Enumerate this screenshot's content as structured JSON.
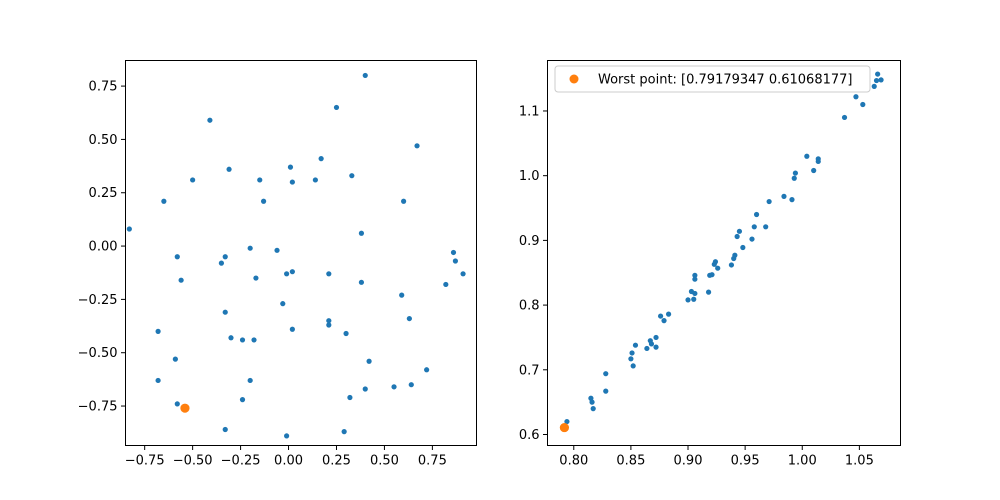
{
  "colors": {
    "series_main": "#1f77b4",
    "worst_point": "#ff7f0e",
    "axes": "#000000"
  },
  "chart_data": [
    {
      "type": "scatter",
      "title": "",
      "xlabel": "",
      "ylabel": "",
      "xlim": [
        -0.85,
        0.98
      ],
      "ylim": [
        -0.935,
        0.87
      ],
      "xticks": [
        -0.75,
        -0.5,
        -0.25,
        0.0,
        0.25,
        0.5,
        0.75
      ],
      "xtick_labels": [
        "−0.75",
        "−0.50",
        "−0.25",
        "0.00",
        "0.25",
        "0.50",
        "0.75"
      ],
      "yticks": [
        -0.75,
        -0.5,
        -0.25,
        0.0,
        0.25,
        0.5,
        0.75
      ],
      "ytick_labels": [
        "−0.75",
        "−0.50",
        "−0.25",
        "0.00",
        "0.25",
        "0.50",
        "0.75"
      ],
      "grid": false,
      "series": [
        {
          "points": [
            [
              -0.83,
              0.08
            ],
            [
              -0.65,
              0.21
            ],
            [
              -0.5,
              0.31
            ],
            [
              -0.41,
              0.59
            ],
            [
              -0.31,
              0.36
            ],
            [
              -0.15,
              0.31
            ],
            [
              -0.13,
              0.21
            ],
            [
              0.01,
              0.37
            ],
            [
              0.02,
              0.3
            ],
            [
              0.14,
              0.31
            ],
            [
              0.17,
              0.41
            ],
            [
              0.25,
              0.65
            ],
            [
              0.33,
              0.33
            ],
            [
              0.4,
              0.8
            ],
            [
              0.6,
              0.21
            ],
            [
              0.67,
              0.47
            ],
            [
              0.38,
              0.06
            ],
            [
              0.38,
              -0.17
            ],
            [
              0.21,
              -0.13
            ],
            [
              0.02,
              -0.12
            ],
            [
              -0.01,
              -0.13
            ],
            [
              -0.06,
              -0.02
            ],
            [
              -0.2,
              -0.01
            ],
            [
              -0.17,
              -0.15
            ],
            [
              -0.33,
              -0.05
            ],
            [
              -0.35,
              -0.08
            ],
            [
              -0.58,
              -0.05
            ],
            [
              -0.56,
              -0.16
            ],
            [
              -0.33,
              -0.31
            ],
            [
              -0.03,
              -0.27
            ],
            [
              0.02,
              -0.39
            ],
            [
              0.21,
              -0.35
            ],
            [
              0.21,
              -0.37
            ],
            [
              0.3,
              -0.41
            ],
            [
              0.42,
              -0.54
            ],
            [
              0.59,
              -0.23
            ],
            [
              0.63,
              -0.34
            ],
            [
              0.82,
              -0.18
            ],
            [
              0.86,
              -0.03
            ],
            [
              0.87,
              -0.07
            ],
            [
              0.91,
              -0.13
            ],
            [
              -0.68,
              -0.4
            ],
            [
              -0.59,
              -0.53
            ],
            [
              -0.68,
              -0.63
            ],
            [
              -0.58,
              -0.74
            ],
            [
              -0.3,
              -0.43
            ],
            [
              -0.24,
              -0.44
            ],
            [
              -0.18,
              -0.44
            ],
            [
              -0.2,
              -0.63
            ],
            [
              -0.24,
              -0.72
            ],
            [
              -0.33,
              -0.86
            ],
            [
              -0.01,
              -0.89
            ],
            [
              0.29,
              -0.87
            ],
            [
              0.32,
              -0.71
            ],
            [
              0.4,
              -0.67
            ],
            [
              0.55,
              -0.66
            ],
            [
              0.64,
              -0.65
            ],
            [
              0.72,
              -0.58
            ]
          ]
        },
        {
          "points": [
            [
              -0.54,
              -0.76
            ]
          ]
        }
      ]
    },
    {
      "type": "scatter",
      "title": "",
      "xlabel": "",
      "ylabel": "",
      "xlim": [
        0.777,
        1.086
      ],
      "ylim": [
        0.583,
        1.178
      ],
      "xticks": [
        0.8,
        0.85,
        0.9,
        0.95,
        1.0,
        1.05
      ],
      "xtick_labels": [
        "0.80",
        "0.85",
        "0.90",
        "0.95",
        "1.00",
        "1.05"
      ],
      "yticks": [
        0.6,
        0.7,
        0.8,
        0.9,
        1.0,
        1.1
      ],
      "ytick_labels": [
        "0.6",
        "0.7",
        "0.8",
        "0.9",
        "1.0",
        "1.1"
      ],
      "grid": false,
      "legend_position": "top-right",
      "series": [
        {
          "points": [
            [
              0.794,
              0.62
            ],
            [
              0.815,
              0.656
            ],
            [
              0.816,
              0.65
            ],
            [
              0.817,
              0.64
            ],
            [
              0.828,
              0.694
            ],
            [
              0.828,
              0.667
            ],
            [
              0.85,
              0.717
            ],
            [
              0.851,
              0.726
            ],
            [
              0.852,
              0.706
            ],
            [
              0.854,
              0.738
            ],
            [
              0.864,
              0.733
            ],
            [
              0.867,
              0.745
            ],
            [
              0.868,
              0.74
            ],
            [
              0.872,
              0.735
            ],
            [
              0.872,
              0.75
            ],
            [
              0.876,
              0.783
            ],
            [
              0.879,
              0.776
            ],
            [
              0.883,
              0.786
            ],
            [
              0.9,
              0.808
            ],
            [
              0.903,
              0.821
            ],
            [
              0.905,
              0.809
            ],
            [
              0.906,
              0.818
            ],
            [
              0.906,
              0.84
            ],
            [
              0.906,
              0.846
            ],
            [
              0.918,
              0.82
            ],
            [
              0.919,
              0.846
            ],
            [
              0.921,
              0.847
            ],
            [
              0.923,
              0.863
            ],
            [
              0.924,
              0.867
            ],
            [
              0.926,
              0.857
            ],
            [
              0.938,
              0.862
            ],
            [
              0.94,
              0.872
            ],
            [
              0.941,
              0.877
            ],
            [
              0.943,
              0.906
            ],
            [
              0.945,
              0.914
            ],
            [
              0.948,
              0.889
            ],
            [
              0.956,
              0.902
            ],
            [
              0.958,
              0.921
            ],
            [
              0.96,
              0.94
            ],
            [
              0.968,
              0.921
            ],
            [
              0.971,
              0.96
            ],
            [
              0.984,
              0.968
            ],
            [
              0.991,
              0.963
            ],
            [
              0.993,
              0.996
            ],
            [
              0.994,
              1.004
            ],
            [
              1.004,
              1.03
            ],
            [
              1.01,
              1.008
            ],
            [
              1.014,
              1.022
            ],
            [
              1.014,
              1.026
            ],
            [
              1.037,
              1.09
            ],
            [
              1.047,
              1.122
            ],
            [
              1.053,
              1.11
            ],
            [
              1.063,
              1.138
            ],
            [
              1.065,
              1.147
            ],
            [
              1.066,
              1.157
            ],
            [
              1.069,
              1.148
            ]
          ]
        },
        {
          "name": "Worst point: [0.79179347 0.61068177]",
          "points": [
            [
              0.7918,
              0.6107
            ]
          ]
        }
      ]
    }
  ]
}
